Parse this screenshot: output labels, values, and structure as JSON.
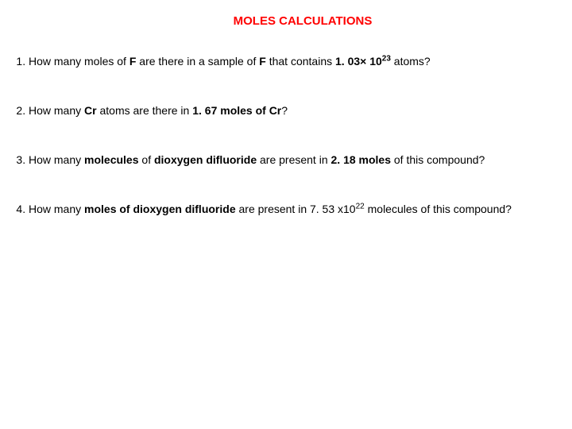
{
  "title": "MOLES CALCULATIONS",
  "title_color": "#ff0000",
  "text_color": "#000000",
  "background_color": "#ffffff",
  "questions": {
    "q1": {
      "pre": "How many moles of ",
      "bold1": "F",
      "mid1": " are there in a sample of ",
      "bold2": "F",
      "mid2": " that contains ",
      "bold3": "1. 03× 10",
      "sup": "23",
      "post": " atoms?"
    },
    "q2": {
      "pre": "How many ",
      "bold1": "Cr",
      "mid1": " atoms are there in ",
      "bold2": "1. 67 moles of Cr",
      "post": "?"
    },
    "q3": {
      "pre": "How many ",
      "bold1": "molecules",
      "mid1": " of ",
      "bold2": "dioxygen difluoride",
      "mid2": " are present in ",
      "bold3": "2. 18 moles",
      "post": " of this compound?"
    },
    "q4": {
      "pre": "How many ",
      "bold1": "moles of dioxygen difluoride",
      "mid1": " are present in 7. 53 x10",
      "sup": "22",
      "post": " molecules of this compound?"
    }
  }
}
